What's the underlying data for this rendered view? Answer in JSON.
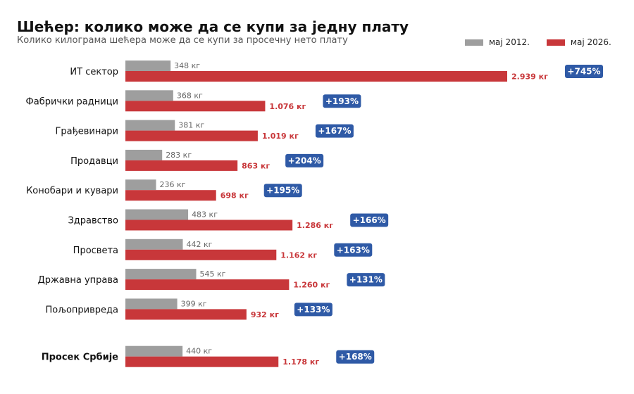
{
  "chart_data": {
    "type": "bar",
    "orientation": "horizontal",
    "title": "Шећер: колико може да се купи за једну плату",
    "subtitle": "Колико килограма шећера може да се купи за просечну нето плату",
    "categories": [
      "ИТ сектор",
      "Фабрички радници",
      "Грађевинари",
      "Продавци",
      "Конобари и кувари",
      "Здравство",
      "Просвета",
      "Државна управа",
      "Пољопривреда",
      "Просек Србије"
    ],
    "highlight_category": "Просек Србије",
    "series": [
      {
        "name": "мај 2012.",
        "color": "#9e9e9e",
        "values": [
          348,
          368,
          381,
          283,
          236,
          483,
          442,
          545,
          399,
          440
        ],
        "labels": [
          "348 кг",
          "368 кг",
          "381 кг",
          "283 кг",
          "236 кг",
          "483 кг",
          "442 кг",
          "545 кг",
          "399 кг",
          "440 кг"
        ]
      },
      {
        "name": "мај 2026.",
        "color": "#c8373a",
        "values": [
          2939,
          1076,
          1019,
          863,
          698,
          1286,
          1162,
          1260,
          932,
          1178
        ],
        "labels": [
          "2.939 кг",
          "1.076 кг",
          "1.019 кг",
          "863 кг",
          "698 кг",
          "1.286 кг",
          "1.162 кг",
          "1.260 кг",
          "932 кг",
          "1.178 кг"
        ]
      }
    ],
    "change_labels": [
      "+745%",
      "+193%",
      "+167%",
      "+204%",
      "+195%",
      "+166%",
      "+163%",
      "+131%",
      "+133%",
      "+168%"
    ],
    "badge_color": "#2f5aa6",
    "xlim": [
      0,
      2939
    ],
    "grid": false,
    "legend_position": "top-right"
  }
}
